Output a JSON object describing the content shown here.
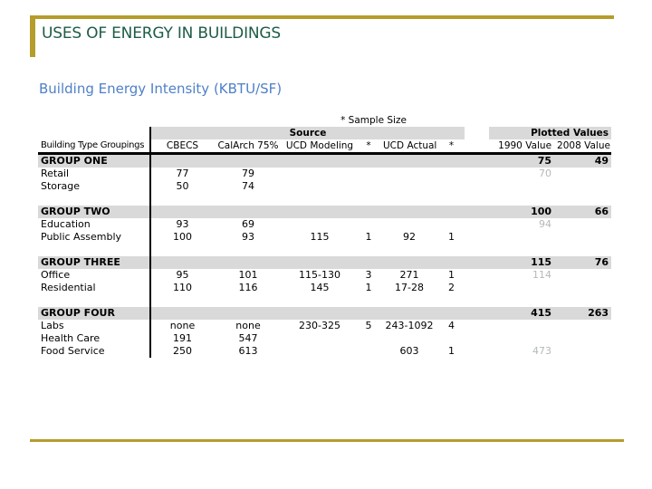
{
  "slide": {
    "title": "USES OF ENERGY IN BUILDINGS",
    "subtitle": "Building Energy Intensity (KBTU/SF)"
  },
  "colors": {
    "accent_gold": "#B59D2C",
    "title_green": "#1D5C45",
    "subtitle_blue": "#4F80C8",
    "band_gray": "#D9D9D9",
    "ghost_text": "#B4B9BC"
  },
  "table": {
    "sample_note": "* Sample Size",
    "section_headers": {
      "source": "Source",
      "plotted": "Plotted Values"
    },
    "columns": [
      "Building Type Groupings",
      "CBECS",
      "CalArch 75%",
      "UCD Modeling",
      "*",
      "UCD Actual",
      "*",
      "1990 Value",
      "2008 Value"
    ],
    "groups": [
      {
        "name": "GROUP ONE",
        "plotted_1990": "75",
        "plotted_2008": "49",
        "rows": [
          {
            "label": "Retail",
            "cbecs": "77",
            "calarch": "79",
            "ucd_modeling": "",
            "ucd_modeling_n": "",
            "ucd_actual": "",
            "ucd_actual_n": "",
            "value_1990": "70",
            "value_1990_ghost": true,
            "value_2008": ""
          },
          {
            "label": "Storage",
            "cbecs": "50",
            "calarch": "74",
            "ucd_modeling": "",
            "ucd_modeling_n": "",
            "ucd_actual": "",
            "ucd_actual_n": "",
            "value_1990": "",
            "value_1990_ghost": false,
            "value_2008": ""
          }
        ]
      },
      {
        "name": "GROUP TWO",
        "plotted_1990": "100",
        "plotted_2008": "66",
        "rows": [
          {
            "label": "Education",
            "cbecs": "93",
            "calarch": "69",
            "ucd_modeling": "",
            "ucd_modeling_n": "",
            "ucd_actual": "",
            "ucd_actual_n": "",
            "value_1990": "94",
            "value_1990_ghost": true,
            "value_2008": ""
          },
          {
            "label": "Public Assembly",
            "cbecs": "100",
            "calarch": "93",
            "ucd_modeling": "115",
            "ucd_modeling_n": "1",
            "ucd_actual": "92",
            "ucd_actual_n": "1",
            "value_1990": "",
            "value_1990_ghost": false,
            "value_2008": ""
          }
        ]
      },
      {
        "name": "GROUP THREE",
        "plotted_1990": "115",
        "plotted_2008": "76",
        "rows": [
          {
            "label": "Office",
            "cbecs": "95",
            "calarch": "101",
            "ucd_modeling": "115-130",
            "ucd_modeling_n": "3",
            "ucd_actual": "271",
            "ucd_actual_n": "1",
            "value_1990": "114",
            "value_1990_ghost": true,
            "value_2008": ""
          },
          {
            "label": "Residential",
            "cbecs": "110",
            "calarch": "116",
            "ucd_modeling": "145",
            "ucd_modeling_n": "1",
            "ucd_actual": "17-28",
            "ucd_actual_n": "2",
            "value_1990": "",
            "value_1990_ghost": false,
            "value_2008": ""
          }
        ]
      },
      {
        "name": "GROUP FOUR",
        "plotted_1990": "415",
        "plotted_2008": "263",
        "rows": [
          {
            "label": "Labs",
            "cbecs": "none",
            "calarch": "none",
            "ucd_modeling": "230-325",
            "ucd_modeling_n": "5",
            "ucd_actual": "243-1092",
            "ucd_actual_n": "4",
            "value_1990": "",
            "value_1990_ghost": false,
            "value_2008": ""
          },
          {
            "label": "Health Care",
            "cbecs": "191",
            "calarch": "547",
            "ucd_modeling": "",
            "ucd_modeling_n": "",
            "ucd_actual": "",
            "ucd_actual_n": "",
            "value_1990": "",
            "value_1990_ghost": false,
            "value_2008": ""
          },
          {
            "label": "Food Service",
            "cbecs": "250",
            "calarch": "613",
            "ucd_modeling": "",
            "ucd_modeling_n": "",
            "ucd_actual": "603",
            "ucd_actual_n": "1",
            "value_1990": "473",
            "value_1990_ghost": true,
            "value_2008": ""
          }
        ]
      }
    ]
  }
}
